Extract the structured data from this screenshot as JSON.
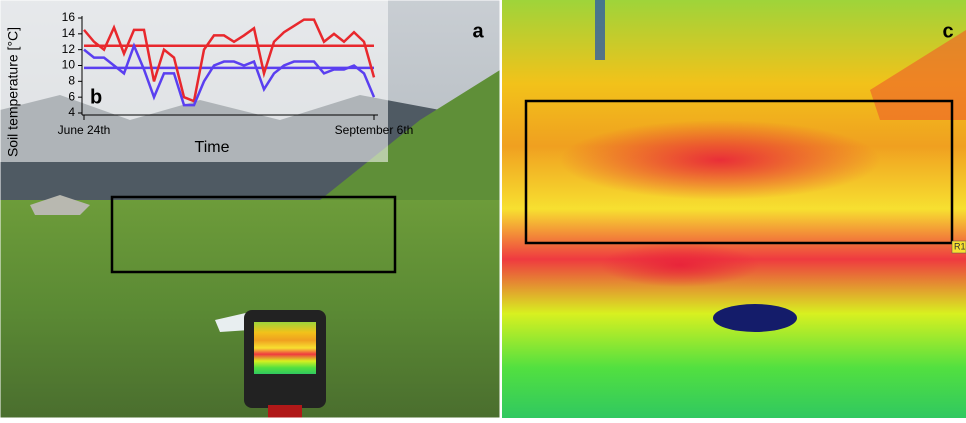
{
  "panel_labels": {
    "a": "a",
    "c": "c"
  },
  "roi_label": "R1",
  "chart_data": {
    "type": "line",
    "panel_label": "b",
    "y_label": "Soil temperature [°C]",
    "x_label": "Time",
    "x": [
      0,
      1,
      2,
      3,
      4,
      5,
      6,
      7,
      8,
      9,
      10,
      11,
      12,
      13,
      14,
      15,
      16,
      17,
      18,
      19,
      20,
      21,
      22,
      23,
      24,
      25,
      26,
      27,
      28,
      29
    ],
    "xlim": [
      0,
      29
    ],
    "xticks": [
      {
        "value": 0,
        "label": "June 24th"
      },
      {
        "value": 29,
        "label": "September 6th"
      }
    ],
    "ylim": [
      4,
      16
    ],
    "yticks": [
      4,
      6,
      8,
      10,
      12,
      14,
      16
    ],
    "series": [
      {
        "color": "#e8282d",
        "values": [
          14.5,
          13,
          12,
          14.8,
          11.5,
          14.5,
          14.5,
          8,
          12,
          11,
          6,
          5.5,
          12,
          13.8,
          13.8,
          13,
          13.8,
          14.7,
          9,
          13,
          14.2,
          15,
          15.8,
          15.8,
          13,
          14,
          13,
          14.2,
          13,
          8.5
        ]
      },
      {
        "color": "#5a3ff0",
        "values": [
          12,
          11,
          11,
          10,
          9,
          12.5,
          9.5,
          6,
          9,
          9,
          5,
          5,
          8,
          10,
          10.5,
          10.5,
          10,
          10.5,
          7,
          9,
          10,
          10.5,
          10.5,
          10.5,
          9,
          9.5,
          9.5,
          10,
          9,
          6
        ]
      }
    ],
    "reference_lines": [
      {
        "value": 12.5,
        "color": "#e8282d"
      },
      {
        "value": 9.7,
        "color": "#5a3ff0"
      }
    ]
  }
}
